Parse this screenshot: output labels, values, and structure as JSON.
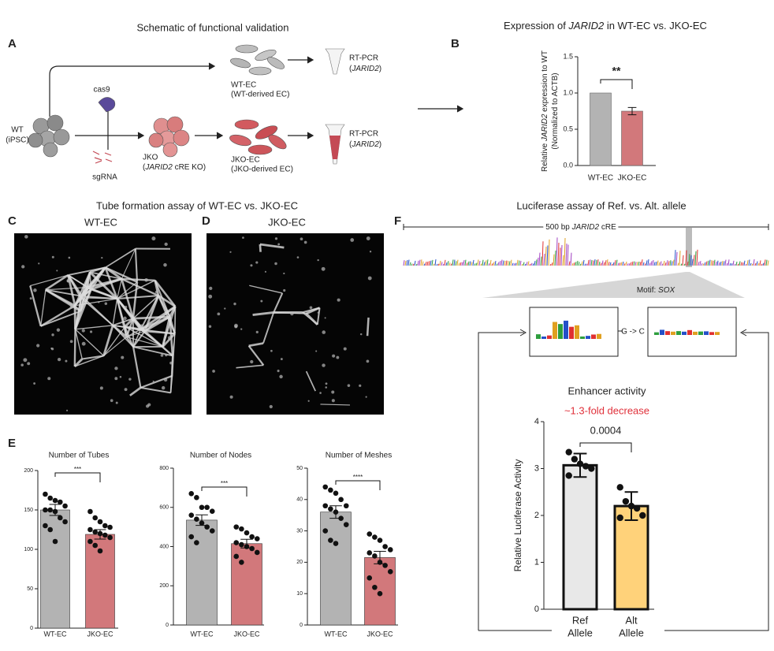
{
  "panels": [
    "A",
    "B",
    "C",
    "D",
    "E",
    "F"
  ],
  "schematic": {
    "title": "Schematic of functional validation",
    "wt": [
      "WT",
      "(iPSC)"
    ],
    "cas9": "cas9",
    "sgrna": "sgRNA",
    "jko": [
      "JKO",
      [
        "(",
        "JARID2",
        " cRE KO)"
      ]
    ],
    "wtec": [
      "WT-EC",
      "(WT-derived EC)"
    ],
    "jkoec": [
      "JKO-EC",
      "(JKO-derived EC)"
    ],
    "rtpcr_top": [
      "RT-PCR",
      [
        "(",
        "JARID2",
        ")"
      ]
    ],
    "rtpcr_bottom": [
      "RT-PCR",
      [
        "(",
        "JARID2",
        ")"
      ]
    ]
  },
  "tube": {
    "title": "Tube formation assay of WT-EC vs. JKO-EC",
    "left": "WT-EC",
    "right": "JKO-EC"
  },
  "luciferase": {
    "title": "Luciferase assay of Ref. vs. Alt. allele",
    "region": [
      "500 bp ",
      "JARID2",
      " cRE"
    ],
    "motif": [
      "Motif: ",
      "SOX"
    ],
    "change": "G -> C"
  },
  "chart_data": [
    {
      "type": "bar",
      "title": [
        "Expression of ",
        "JARID2",
        " in WT-EC vs. JKO-EC"
      ],
      "ylabel": [
        [
          "Relative ",
          "JARID2",
          " expression to WT"
        ],
        [
          "(Normalized to ACTB)"
        ]
      ],
      "categories": [
        [
          "WT-EC"
        ],
        [
          "JKO-EC"
        ]
      ],
      "values": [
        1.0,
        0.75
      ],
      "errors": [
        null,
        0.05
      ],
      "colors": [
        "#b3b3b3",
        "#d2787b"
      ],
      "ylim": [
        0,
        1.5
      ],
      "yticks": [
        {
          "value": 0,
          "label": "0.0"
        },
        {
          "value": 0.5,
          "label": "0.5"
        },
        {
          "value": 1,
          "label": "1.0"
        },
        {
          "value": 1.5,
          "label": "1.5"
        }
      ],
      "annotation": "**"
    },
    {
      "type": "bar",
      "title": "Number of Tubes",
      "categories": [
        [
          "WT-EC"
        ],
        [
          "JKO-EC"
        ]
      ],
      "values": [
        150,
        119
      ],
      "errors": [
        7,
        6
      ],
      "points": [
        [
          170,
          165,
          162,
          160,
          155,
          150,
          150,
          148,
          140,
          135,
          130,
          125,
          110
        ],
        [
          148,
          140,
          135,
          130,
          128,
          125,
          122,
          120,
          118,
          115,
          110,
          105,
          98
        ]
      ],
      "colors": [
        "#b3b3b3",
        "#d2787b"
      ],
      "ylim": [
        0,
        200
      ],
      "yticks": [
        0,
        50,
        100,
        150,
        200
      ],
      "annotation": "***"
    },
    {
      "type": "bar",
      "title": "Number of Nodes",
      "categories": [
        [
          "WT-EC"
        ],
        [
          "JKO-EC"
        ]
      ],
      "values": [
        535,
        415
      ],
      "errors": [
        27,
        22
      ],
      "points": [
        [
          670,
          650,
          600,
          600,
          580,
          560,
          540,
          520,
          500,
          480,
          450,
          420
        ],
        [
          500,
          490,
          470,
          450,
          440,
          420,
          410,
          400,
          390,
          370,
          350,
          320
        ]
      ],
      "colors": [
        "#b3b3b3",
        "#d2787b"
      ],
      "ylim": [
        0,
        800
      ],
      "yticks": [
        0,
        200,
        400,
        600,
        800
      ],
      "annotation": "***"
    },
    {
      "type": "bar",
      "title": "Number of Meshes",
      "categories": [
        [
          "WT-EC"
        ],
        [
          "JKO-EC"
        ]
      ],
      "values": [
        36,
        21.5
      ],
      "errors": [
        2,
        2
      ],
      "points": [
        [
          44,
          43,
          42,
          40,
          38,
          38,
          37,
          36,
          34,
          32,
          30,
          27,
          26
        ],
        [
          29,
          28,
          27,
          25,
          24,
          23,
          22,
          20,
          19,
          17,
          15,
          12,
          10
        ]
      ],
      "colors": [
        "#b3b3b3",
        "#d2787b"
      ],
      "ylim": [
        0,
        50
      ],
      "yticks": [
        0,
        10,
        20,
        30,
        40,
        50
      ],
      "annotation": "****"
    },
    {
      "type": "bar",
      "title": "Enhancer activity",
      "subtitle": "~1.3-fold decrease",
      "ylabel": [
        [
          "Relative Luciferase Activity"
        ]
      ],
      "categories": [
        [
          "Ref",
          "Allele"
        ],
        [
          "Alt",
          "Allele"
        ]
      ],
      "values": [
        3.07,
        2.2
      ],
      "errors": [
        0.25,
        0.3
      ],
      "points": [
        [
          3.35,
          3.2,
          3.1,
          3.05,
          3.0,
          2.85
        ],
        [
          2.6,
          2.3,
          2.2,
          2.15,
          2.0,
          1.95
        ]
      ],
      "colors": [
        "#e8e8e8",
        "#ffd27a"
      ],
      "ylim": [
        0,
        4
      ],
      "yticks": [
        0,
        1,
        2,
        3,
        4
      ],
      "annotation": "0.0004"
    }
  ]
}
